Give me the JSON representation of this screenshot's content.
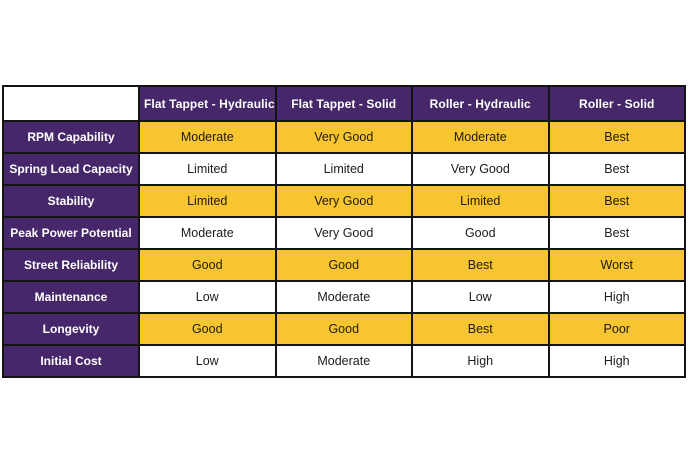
{
  "colors": {
    "header_purple": "#46286a",
    "highlight_yellow": "#f7c52f",
    "border_black": "#141414",
    "cell_text": "#1c1c1c",
    "header_text": "#ffffff",
    "cell_white": "#ffffff"
  },
  "chart_data": {
    "type": "table",
    "title": "",
    "corner_label": "",
    "columns": [
      "Flat Tappet - Hydraulic",
      "Flat Tappet - Solid",
      "Roller - Hydraulic",
      "Roller - Solid"
    ],
    "rows": [
      {
        "label": "RPM Capability",
        "highlight": true,
        "values": [
          "Moderate",
          "Very Good",
          "Moderate",
          "Best"
        ]
      },
      {
        "label": "Spring Load Capacity",
        "highlight": false,
        "values": [
          "Limited",
          "Limited",
          "Very Good",
          "Best"
        ]
      },
      {
        "label": "Stability",
        "highlight": true,
        "values": [
          "Limited",
          "Very Good",
          "Limited",
          "Best"
        ]
      },
      {
        "label": "Peak Power Potential",
        "highlight": false,
        "values": [
          "Moderate",
          "Very Good",
          "Good",
          "Best"
        ]
      },
      {
        "label": "Street Reliability",
        "highlight": true,
        "values": [
          "Good",
          "Good",
          "Best",
          "Worst"
        ]
      },
      {
        "label": "Maintenance",
        "highlight": false,
        "values": [
          "Low",
          "Moderate",
          "Low",
          "High"
        ]
      },
      {
        "label": "Longevity",
        "highlight": true,
        "values": [
          "Good",
          "Good",
          "Best",
          "Poor"
        ]
      },
      {
        "label": "Initial Cost",
        "highlight": false,
        "values": [
          "Low",
          "Moderate",
          "High",
          "High"
        ]
      }
    ]
  }
}
